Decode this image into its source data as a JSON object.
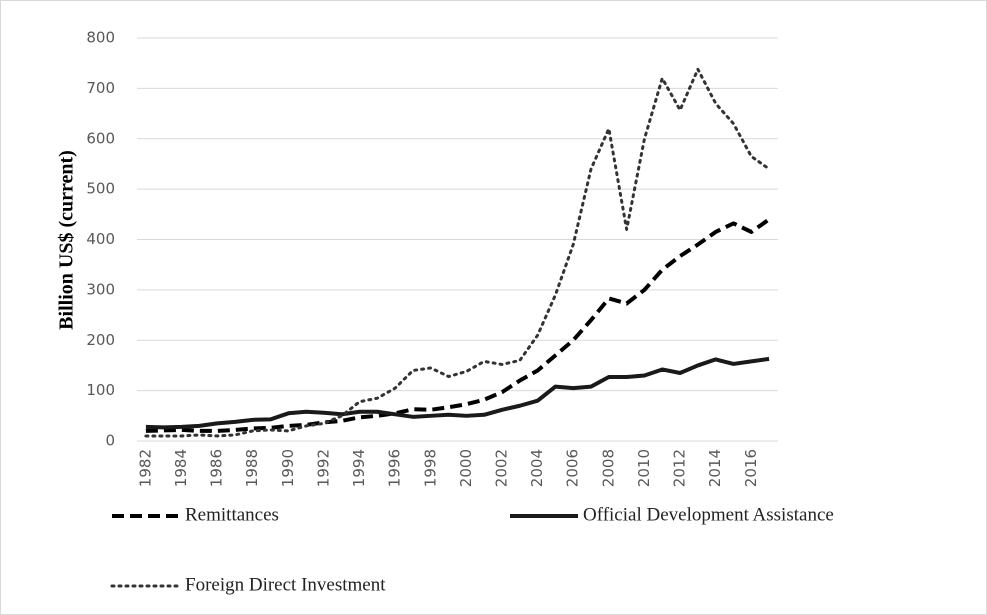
{
  "chart_data": {
    "type": "line",
    "y_label": "Billion US$ (current)",
    "categories": [
      "1982",
      null,
      "1984",
      null,
      "1986",
      null,
      "1988",
      null,
      "1990",
      null,
      "1992",
      null,
      "1994",
      null,
      "1996",
      null,
      "1998",
      null,
      "2000",
      null,
      "2002",
      null,
      "2004",
      null,
      "2006",
      null,
      "2008",
      null,
      "2010",
      null,
      "2012",
      null,
      "2014",
      null,
      "2016",
      null
    ],
    "series": [
      {
        "name": "Remittances",
        "color": "#000000",
        "style": "dashed",
        "values": [
          20,
          21,
          22,
          20,
          20,
          22,
          25,
          26,
          30,
          32,
          37,
          40,
          47,
          50,
          55,
          63,
          62,
          67,
          73,
          82,
          97,
          120,
          140,
          170,
          200,
          240,
          283,
          273,
          300,
          340,
          367,
          390,
          415,
          432,
          415,
          440
        ]
      },
      {
        "name": "Official Development Assistance",
        "color": "#1a1a1a",
        "style": "solid",
        "values": [
          28,
          27,
          28,
          30,
          35,
          38,
          42,
          43,
          55,
          58,
          56,
          53,
          58,
          58,
          53,
          48,
          50,
          52,
          50,
          52,
          62,
          70,
          80,
          108,
          105,
          108,
          127,
          127,
          130,
          142,
          135,
          150,
          162,
          153,
          158,
          163
        ]
      },
      {
        "name": "Foreign Direct Investment",
        "color": "#333333",
        "style": "dotted",
        "values": [
          10,
          10,
          10,
          12,
          10,
          12,
          20,
          22,
          20,
          30,
          35,
          50,
          78,
          85,
          105,
          140,
          145,
          128,
          138,
          158,
          152,
          160,
          210,
          290,
          390,
          540,
          620,
          420,
          600,
          720,
          657,
          738,
          670,
          630,
          565,
          540
        ]
      }
    ],
    "ylim": [
      0,
      800
    ],
    "yticks": [
      0,
      100,
      200,
      300,
      400,
      500,
      600,
      700,
      800
    ],
    "grid": true,
    "legend": "bottom"
  }
}
